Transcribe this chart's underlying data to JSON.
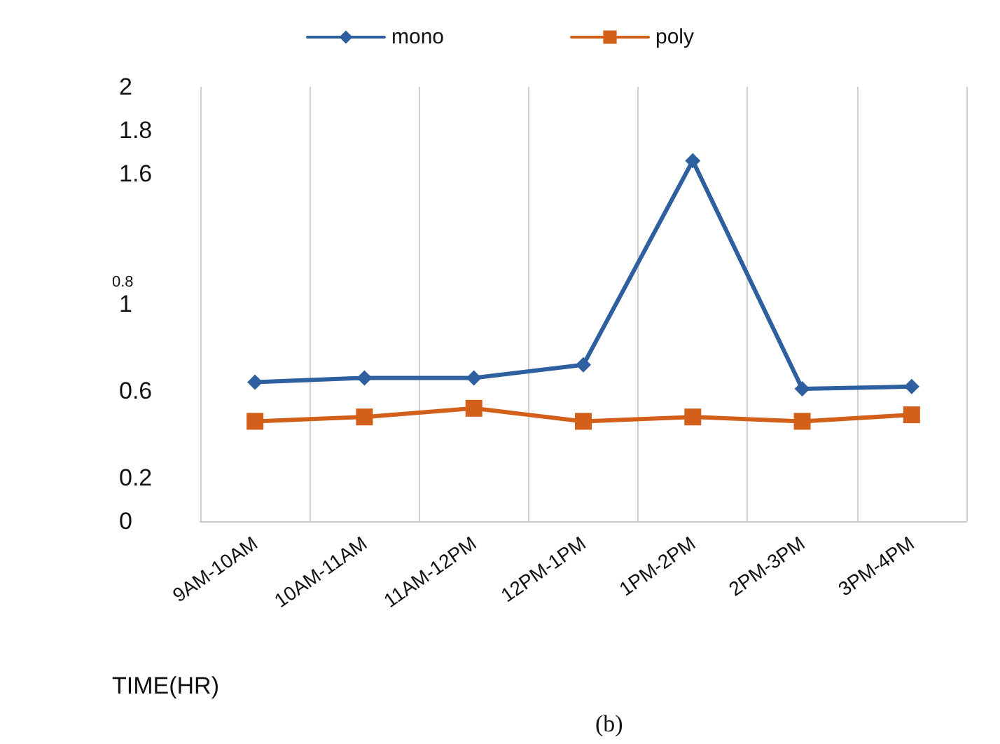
{
  "chart_data": {
    "type": "line",
    "xlabel": "TIME(HR)",
    "categories": [
      "9AM-10AM",
      "10AM-11AM",
      "11AM-12PM",
      "12PM-1PM",
      "1PM-2PM",
      "2PM-3PM",
      "3PM-4PM"
    ],
    "series": [
      {
        "name": "mono",
        "color": "#2e5f9e",
        "marker": "diamond",
        "values": [
          0.64,
          0.66,
          0.66,
          0.72,
          1.66,
          0.61,
          0.62
        ]
      },
      {
        "name": "poly",
        "color": "#d2601a",
        "marker": "square",
        "values": [
          0.46,
          0.48,
          0.52,
          0.46,
          0.48,
          0.46,
          0.49
        ]
      }
    ],
    "ylim": [
      0,
      2
    ],
    "yticks": [
      0,
      0.2,
      0.6,
      1,
      1.6,
      1.8,
      2
    ],
    "annotations": [
      "0.8",
      "(b)"
    ],
    "grid": "x",
    "legend": "top",
    "line_style": "solid"
  }
}
